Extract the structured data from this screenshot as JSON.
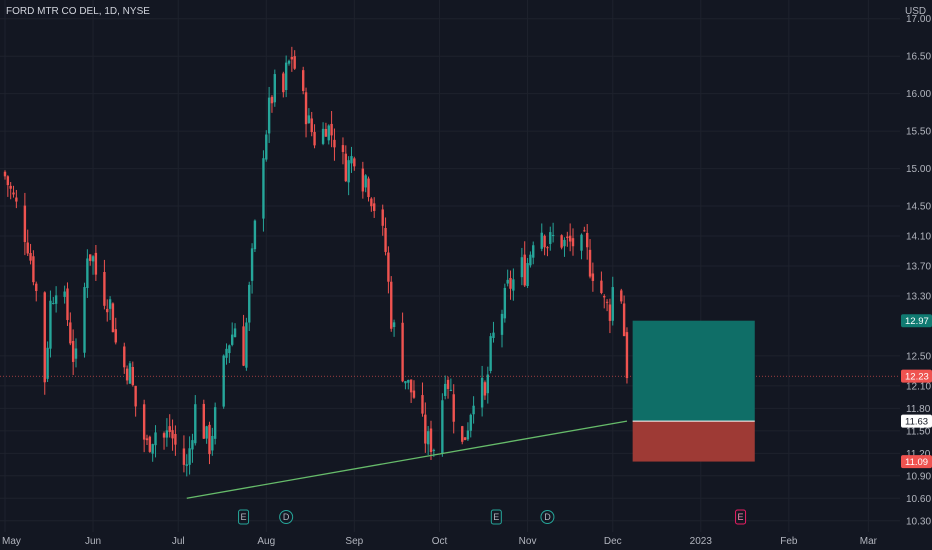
{
  "chart_data": {
    "type": "candlestick",
    "title": "FORD MTR CO DEL, 1D, NYSE",
    "currency": "USD",
    "y_range": [
      10.15,
      17.25
    ],
    "y_ticks": [
      "17.00",
      "16.50",
      "16.00",
      "15.50",
      "15.00",
      "14.50",
      "14.10",
      "13.70",
      "13.30",
      "12.50",
      "12.10",
      "11.80",
      "11.50",
      "11.20",
      "10.90",
      "10.60",
      "10.30"
    ],
    "x_labels": [
      {
        "label": "May",
        "day": 0
      },
      {
        "label": "Jun",
        "day": 31
      },
      {
        "label": "Jul",
        "day": 61
      },
      {
        "label": "Aug",
        "day": 92
      },
      {
        "label": "Sep",
        "day": 123
      },
      {
        "label": "Oct",
        "day": 153
      },
      {
        "label": "Nov",
        "day": 184
      },
      {
        "label": "Dec",
        "day": 214
      },
      {
        "label": "2023",
        "day": 245
      },
      {
        "label": "Feb",
        "day": 276
      },
      {
        "label": "Mar",
        "day": 304
      }
    ],
    "anchors": [
      [
        0,
        14.9
      ],
      [
        2,
        14.7
      ],
      [
        5,
        14.4
      ],
      [
        8,
        14.0
      ],
      [
        10,
        13.6
      ],
      [
        12,
        13.1
      ],
      [
        14,
        12.2
      ],
      [
        16,
        13.2
      ],
      [
        19,
        13.6
      ],
      [
        22,
        13.0
      ],
      [
        24,
        12.5
      ],
      [
        26,
        12.4
      ],
      [
        29,
        13.9
      ],
      [
        31,
        13.8
      ],
      [
        33,
        13.4
      ],
      [
        35,
        13.3
      ],
      [
        37,
        13.2
      ],
      [
        40,
        12.4
      ],
      [
        44,
        12.3
      ],
      [
        47,
        11.6
      ],
      [
        50,
        11.3
      ],
      [
        53,
        11.5
      ],
      [
        56,
        11.4
      ],
      [
        58,
        11.5
      ],
      [
        61,
        11.2
      ],
      [
        64,
        11.0
      ],
      [
        67,
        11.8
      ],
      [
        70,
        11.5
      ],
      [
        72,
        11.3
      ],
      [
        75,
        11.9
      ],
      [
        78,
        12.6
      ],
      [
        81,
        12.9
      ],
      [
        84,
        12.5
      ],
      [
        87,
        13.8
      ],
      [
        90,
        15.0
      ],
      [
        93,
        15.8
      ],
      [
        95,
        16.1
      ],
      [
        97,
        15.7
      ],
      [
        99,
        16.3
      ],
      [
        101,
        16.5
      ],
      [
        103,
        16.2
      ],
      [
        105,
        15.9
      ],
      [
        107,
        15.6
      ],
      [
        110,
        15.3
      ],
      [
        113,
        15.6
      ],
      [
        116,
        15.4
      ],
      [
        118,
        15.2
      ],
      [
        120,
        15.0
      ],
      [
        123,
        15.2
      ],
      [
        125,
        14.8
      ],
      [
        127,
        14.9
      ],
      [
        130,
        14.5
      ],
      [
        132,
        14.3
      ],
      [
        134,
        13.9
      ],
      [
        136,
        13.0
      ],
      [
        138,
        12.7
      ],
      [
        140,
        12.3
      ],
      [
        142,
        12.1
      ],
      [
        145,
        11.9
      ],
      [
        148,
        11.4
      ],
      [
        151,
        11.3
      ],
      [
        153,
        11.6
      ],
      [
        155,
        12.3
      ],
      [
        157,
        12.0
      ],
      [
        159,
        11.5
      ],
      [
        161,
        11.3
      ],
      [
        163,
        11.6
      ],
      [
        165,
        12.0
      ],
      [
        167,
        12.2
      ],
      [
        169,
        11.9
      ],
      [
        171,
        12.6
      ],
      [
        173,
        12.9
      ],
      [
        175,
        13.1
      ],
      [
        177,
        13.4
      ],
      [
        179,
        13.5
      ],
      [
        181,
        13.8
      ],
      [
        183,
        13.6
      ],
      [
        185,
        13.9
      ],
      [
        187,
        14.3
      ],
      [
        189,
        14.2
      ],
      [
        191,
        14.0
      ],
      [
        194,
        14.1
      ],
      [
        197,
        14.0
      ],
      [
        200,
        14.0
      ],
      [
        202,
        13.9
      ],
      [
        204,
        14.0
      ],
      [
        206,
        13.7
      ],
      [
        209,
        13.5
      ],
      [
        211,
        13.2
      ],
      [
        213,
        13.1
      ],
      [
        215,
        13.7
      ],
      [
        217,
        13.3
      ],
      [
        219,
        12.3
      ]
    ],
    "trendline": {
      "from": {
        "day": 64,
        "price": 10.6
      },
      "to": {
        "day": 219,
        "price": 11.63
      }
    },
    "position": {
      "start_day": 221,
      "end_day": 264,
      "target": 12.97,
      "entry": 11.63,
      "stop": 11.09,
      "profit_color": "#0f6e67",
      "loss_color": "#9e3a35"
    },
    "last_price": 12.23,
    "price_labels": [
      {
        "value": 12.97,
        "text": "12.97",
        "bg": "#107a71",
        "fg": "#ffffff"
      },
      {
        "value": 12.23,
        "text": "12.23",
        "bg": "#ef5350",
        "fg": "#ffffff"
      },
      {
        "value": 11.63,
        "text": "11.63",
        "bg": "#ffffff",
        "fg": "#131722"
      },
      {
        "value": 11.09,
        "text": "11.09",
        "bg": "#ef5350",
        "fg": "#ffffff"
      }
    ],
    "events": [
      {
        "day": 84,
        "label": "E"
      },
      {
        "day": 99,
        "label": "D"
      },
      {
        "day": 173,
        "label": "E"
      },
      {
        "day": 191,
        "label": "D"
      },
      {
        "day": 259,
        "label": "E"
      }
    ],
    "colors": {
      "background": "#131722",
      "up": "#26a69a",
      "down": "#ef5350",
      "grid": "#1e222d",
      "trendline": "#66bb6a",
      "text": "#b2b5be"
    }
  }
}
